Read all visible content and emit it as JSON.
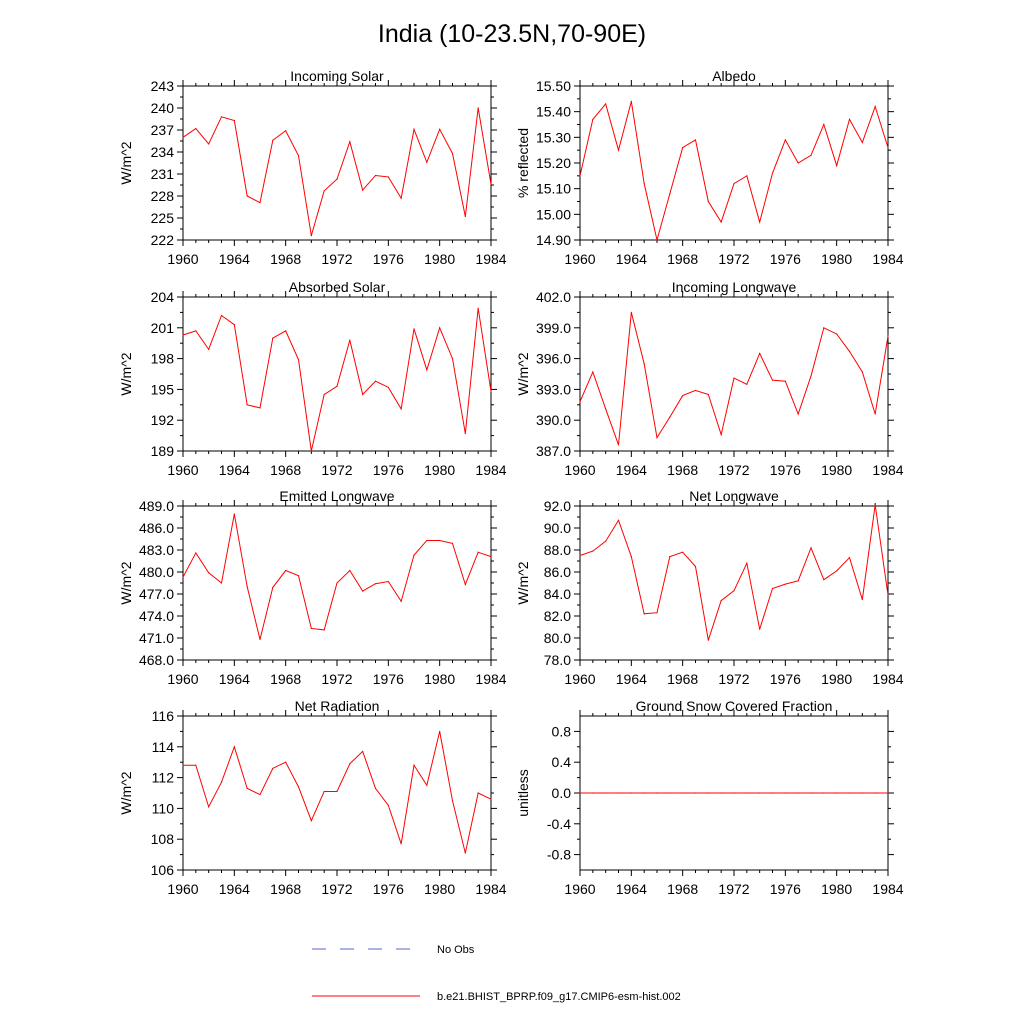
{
  "title": "India (10-23.5N,70-90E)",
  "colors": {
    "model_line": "#ff0000",
    "obs_line": "#5566cc",
    "axis": "#000000"
  },
  "legend": {
    "placement": "bottom-center",
    "items": [
      {
        "label": "No Obs",
        "style": "dashed",
        "color": "#5566cc"
      },
      {
        "label": "b.e21.BHIST_BPRP.f09_g17.CMIP6-esm-hist.002",
        "style": "solid",
        "color": "#ff0000"
      }
    ]
  },
  "x_ticks": [
    "1960",
    "1964",
    "1968",
    "1972",
    "1976",
    "1980",
    "1984"
  ],
  "chart_data": [
    {
      "type": "line",
      "title": "Incoming Solar",
      "ylabel": "W/m^2",
      "xlim": [
        1960,
        1984
      ],
      "ylim": [
        222,
        243
      ],
      "yticks": [
        "222",
        "225",
        "228",
        "231",
        "234",
        "237",
        "240",
        "243"
      ],
      "years": [
        1960,
        1961,
        1962,
        1963,
        1964,
        1965,
        1966,
        1967,
        1968,
        1969,
        1970,
        1971,
        1972,
        1973,
        1974,
        1975,
        1976,
        1977,
        1978,
        1979,
        1980,
        1981,
        1982,
        1983,
        1984
      ],
      "values": [
        236.0,
        237.2,
        235.1,
        238.8,
        238.3,
        228.0,
        227.1,
        235.6,
        236.9,
        233.5,
        222.6,
        228.7,
        230.3,
        235.4,
        228.8,
        230.8,
        230.6,
        227.7,
        237.1,
        232.6,
        237.1,
        233.8,
        225.2,
        240.0,
        229.6
      ]
    },
    {
      "type": "line",
      "title": "Albedo",
      "ylabel": "% reflected",
      "xlim": [
        1960,
        1984
      ],
      "ylim": [
        14.9,
        15.5
      ],
      "yticks": [
        "14.90",
        "15.00",
        "15.10",
        "15.20",
        "15.30",
        "15.40",
        "15.50"
      ],
      "years": [
        1960,
        1961,
        1962,
        1963,
        1964,
        1965,
        1966,
        1967,
        1968,
        1969,
        1970,
        1971,
        1972,
        1973,
        1974,
        1975,
        1976,
        1977,
        1978,
        1979,
        1980,
        1981,
        1982,
        1983,
        1984
      ],
      "values": [
        15.15,
        15.37,
        15.43,
        15.25,
        15.44,
        15.12,
        14.9,
        15.08,
        15.26,
        15.29,
        15.05,
        14.97,
        15.12,
        15.15,
        14.97,
        15.16,
        15.29,
        15.2,
        15.23,
        15.35,
        15.19,
        15.37,
        15.28,
        15.42,
        15.26
      ]
    },
    {
      "type": "line",
      "title": "Absorbed Solar",
      "ylabel": "W/m^2",
      "xlim": [
        1960,
        1984
      ],
      "ylim": [
        189,
        204
      ],
      "yticks": [
        "189",
        "192",
        "195",
        "198",
        "201",
        "204"
      ],
      "years": [
        1960,
        1961,
        1962,
        1963,
        1964,
        1965,
        1966,
        1967,
        1968,
        1969,
        1970,
        1971,
        1972,
        1973,
        1974,
        1975,
        1976,
        1977,
        1978,
        1979,
        1980,
        1981,
        1982,
        1983,
        1984
      ],
      "values": [
        200.3,
        200.7,
        198.9,
        202.2,
        201.3,
        193.5,
        193.2,
        200.0,
        200.7,
        197.9,
        189.0,
        194.5,
        195.3,
        199.8,
        194.5,
        195.8,
        195.2,
        193.1,
        200.9,
        196.9,
        201.0,
        198.0,
        190.7,
        202.9,
        194.8
      ]
    },
    {
      "type": "line",
      "title": "Incoming Longwave",
      "ylabel": "W/m^2",
      "xlim": [
        1960,
        1984
      ],
      "ylim": [
        387.0,
        402.0
      ],
      "yticks": [
        "387.0",
        "390.0",
        "393.0",
        "396.0",
        "399.0",
        "402.0"
      ],
      "years": [
        1960,
        1961,
        1962,
        1963,
        1964,
        1965,
        1966,
        1967,
        1968,
        1969,
        1970,
        1971,
        1972,
        1973,
        1974,
        1975,
        1976,
        1977,
        1978,
        1979,
        1980,
        1981,
        1982,
        1983,
        1984
      ],
      "values": [
        391.8,
        394.7,
        391.1,
        387.6,
        400.5,
        395.5,
        388.3,
        390.3,
        392.4,
        392.9,
        392.5,
        388.6,
        394.1,
        393.5,
        396.5,
        393.9,
        393.8,
        390.6,
        394.3,
        399.0,
        398.4,
        396.7,
        394.7,
        390.6,
        398.2
      ]
    },
    {
      "type": "line",
      "title": "Emitted Longwave",
      "ylabel": "W/m^2",
      "xlim": [
        1960,
        1984
      ],
      "ylim": [
        468.0,
        489.0
      ],
      "yticks": [
        "468.0",
        "471.0",
        "474.0",
        "477.0",
        "480.0",
        "483.0",
        "486.0",
        "489.0"
      ],
      "years": [
        1960,
        1961,
        1962,
        1963,
        1964,
        1965,
        1966,
        1967,
        1968,
        1969,
        1970,
        1971,
        1972,
        1973,
        1974,
        1975,
        1976,
        1977,
        1978,
        1979,
        1980,
        1981,
        1982,
        1983,
        1984
      ],
      "values": [
        479.3,
        482.6,
        479.9,
        478.5,
        487.9,
        478.0,
        470.8,
        477.9,
        480.2,
        479.5,
        472.3,
        472.1,
        478.5,
        480.2,
        477.4,
        478.4,
        478.7,
        476.0,
        482.3,
        484.3,
        484.3,
        483.9,
        478.3,
        482.7,
        482.1
      ]
    },
    {
      "type": "line",
      "title": "Net Longwave",
      "ylabel": "W/m^2",
      "xlim": [
        1960,
        1984
      ],
      "ylim": [
        78.0,
        92.0
      ],
      "yticks": [
        "78.0",
        "80.0",
        "82.0",
        "84.0",
        "86.0",
        "88.0",
        "90.0",
        "92.0"
      ],
      "years": [
        1960,
        1961,
        1962,
        1963,
        1964,
        1965,
        1966,
        1967,
        1968,
        1969,
        1970,
        1971,
        1972,
        1973,
        1974,
        1975,
        1976,
        1977,
        1978,
        1979,
        1980,
        1981,
        1982,
        1983,
        1984
      ],
      "values": [
        87.5,
        87.9,
        88.8,
        90.7,
        87.4,
        82.2,
        82.3,
        87.4,
        87.8,
        86.5,
        79.8,
        83.4,
        84.3,
        86.8,
        80.8,
        84.5,
        84.9,
        85.2,
        88.2,
        85.3,
        86.1,
        87.3,
        83.5,
        92.1,
        83.9
      ]
    },
    {
      "type": "line",
      "title": "Net Radiation",
      "ylabel": "W/m^2",
      "xlim": [
        1960,
        1984
      ],
      "ylim": [
        106,
        116
      ],
      "yticks": [
        "106",
        "108",
        "110",
        "112",
        "114",
        "116"
      ],
      "years": [
        1960,
        1961,
        1962,
        1963,
        1964,
        1965,
        1966,
        1967,
        1968,
        1969,
        1970,
        1971,
        1972,
        1973,
        1974,
        1975,
        1976,
        1977,
        1978,
        1979,
        1980,
        1981,
        1982,
        1983,
        1984
      ],
      "values": [
        112.8,
        112.8,
        110.1,
        111.7,
        114.0,
        111.3,
        110.9,
        112.6,
        113.0,
        111.4,
        109.2,
        111.1,
        111.1,
        112.9,
        113.7,
        111.3,
        110.2,
        107.7,
        112.8,
        111.5,
        115.0,
        110.5,
        107.1,
        111.0,
        110.6
      ]
    },
    {
      "type": "line",
      "title": "Ground Snow Covered Fraction",
      "ylabel": "unitless",
      "xlim": [
        1960,
        1984
      ],
      "ylim": [
        -1.0,
        1.0
      ],
      "yticks": [
        "-0.8",
        "-0.4",
        "0.0",
        "0.4",
        "0.8"
      ],
      "ytick_values": [
        -0.8,
        -0.4,
        0.0,
        0.4,
        0.8
      ],
      "years": [
        1960,
        1961,
        1962,
        1963,
        1964,
        1965,
        1966,
        1967,
        1968,
        1969,
        1970,
        1971,
        1972,
        1973,
        1974,
        1975,
        1976,
        1977,
        1978,
        1979,
        1980,
        1981,
        1982,
        1983,
        1984
      ],
      "values": [
        0,
        0,
        0,
        0,
        0,
        0,
        0,
        0,
        0,
        0,
        0,
        0,
        0,
        0,
        0,
        0,
        0,
        0,
        0,
        0,
        0,
        0,
        0,
        0,
        0
      ]
    }
  ]
}
